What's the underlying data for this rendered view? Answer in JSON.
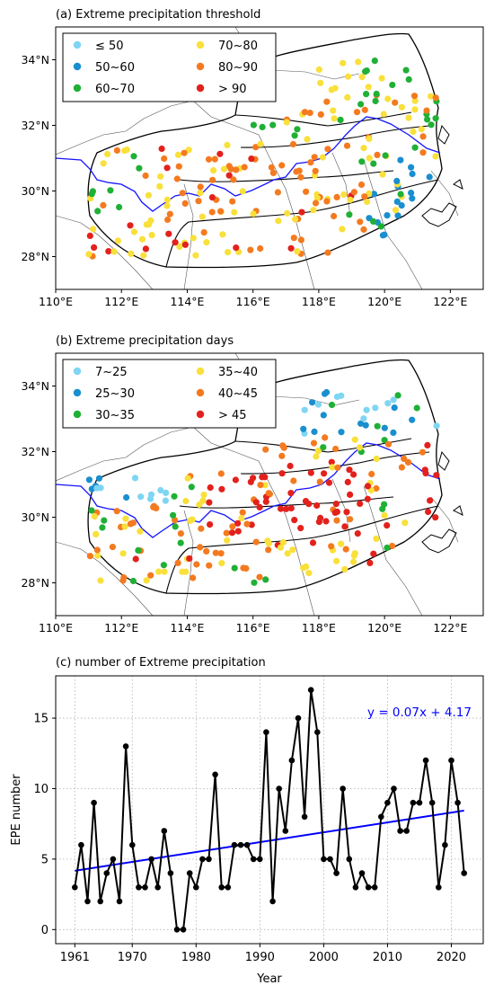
{
  "chart_data": [
    {
      "type": "scatter",
      "title": "(a) Extreme precipitation threshold",
      "xlim": [
        110,
        123
      ],
      "ylim": [
        27,
        35
      ],
      "xticks": [
        "110°E",
        "112°E",
        "114°E",
        "116°E",
        "118°E",
        "120°E",
        "122°E"
      ],
      "yticks": [
        "28°N",
        "30°N",
        "32°N",
        "34°N"
      ],
      "legend": {
        "placement": "top-left",
        "entries": [
          {
            "label": "≤ 50",
            "color": "#7fd6f2"
          },
          {
            "label": "70~80",
            "color": "#f9e03a"
          },
          {
            "label": "50~60",
            "color": "#1a8fcf"
          },
          {
            "label": "80~90",
            "color": "#f47a20"
          },
          {
            "label": "60~70",
            "color": "#1fb035"
          },
          {
            "label": "> 90",
            "color": "#e3211c"
          }
        ]
      },
      "distribution_note": "Stations mostly 60~80 in the west and north, 80~90 along the Yangtze corridor, 50~60 in the south-east coastal area."
    },
    {
      "type": "scatter",
      "title": "(b) Extreme precipitation days",
      "xlim": [
        110,
        123
      ],
      "ylim": [
        27,
        35
      ],
      "xticks": [
        "110°E",
        "112°E",
        "114°E",
        "116°E",
        "118°E",
        "120°E",
        "122°E"
      ],
      "yticks": [
        "28°N",
        "30°N",
        "32°N",
        "34°N"
      ],
      "legend": {
        "placement": "top-left",
        "entries": [
          {
            "label": "7~25",
            "color": "#7fd6f2"
          },
          {
            "label": "35~40",
            "color": "#f9e03a"
          },
          {
            "label": "25~30",
            "color": "#1a8fcf"
          },
          {
            "label": "40~45",
            "color": "#f47a20"
          },
          {
            "label": "30~35",
            "color": "#1fb035"
          },
          {
            "label": "> 45",
            "color": "#e3211c"
          }
        ]
      },
      "distribution_note": "Fewest days in the north (7~25), most days (> 45) in the central Yangtze basin."
    },
    {
      "type": "line",
      "title": "(c) number of Extreme precipitation",
      "xlabel": "Year",
      "ylabel": "EPE number",
      "xlim": [
        1958,
        2025
      ],
      "ylim": [
        -1,
        18
      ],
      "xticks": [
        1961,
        1970,
        1980,
        1990,
        2000,
        2010,
        2020
      ],
      "yticks": [
        0,
        5,
        10,
        15
      ],
      "grid": true,
      "x": [
        1961,
        1962,
        1963,
        1964,
        1965,
        1966,
        1967,
        1968,
        1969,
        1970,
        1971,
        1972,
        1973,
        1974,
        1975,
        1976,
        1977,
        1978,
        1979,
        1980,
        1981,
        1982,
        1983,
        1984,
        1985,
        1986,
        1987,
        1988,
        1989,
        1990,
        1991,
        1992,
        1993,
        1994,
        1995,
        1996,
        1997,
        1998,
        1999,
        2000,
        2001,
        2002,
        2003,
        2004,
        2005,
        2006,
        2007,
        2008,
        2009,
        2010,
        2011,
        2012,
        2013,
        2014,
        2015,
        2016,
        2017,
        2018,
        2019,
        2020,
        2021,
        2022
      ],
      "series": [
        {
          "values": [
            3,
            6,
            2,
            9,
            2,
            4,
            5,
            2,
            13,
            6,
            3,
            3,
            5,
            3,
            7,
            4,
            0,
            0,
            4,
            3,
            5,
            5,
            11,
            3,
            3,
            6,
            6,
            6,
            5,
            5,
            14,
            2,
            10,
            7,
            12,
            15,
            8,
            17,
            14,
            5,
            5,
            4,
            10,
            5,
            3,
            4,
            3,
            3,
            8,
            9,
            10,
            7,
            7,
            9,
            9,
            12,
            9,
            3,
            6,
            12,
            9,
            4
          ],
          "color": "#000000"
        }
      ],
      "trend": {
        "label": "y = 0.07x + 4.17",
        "slope": 0.07,
        "intercept": 4.17,
        "color": "#0000ff"
      }
    }
  ]
}
